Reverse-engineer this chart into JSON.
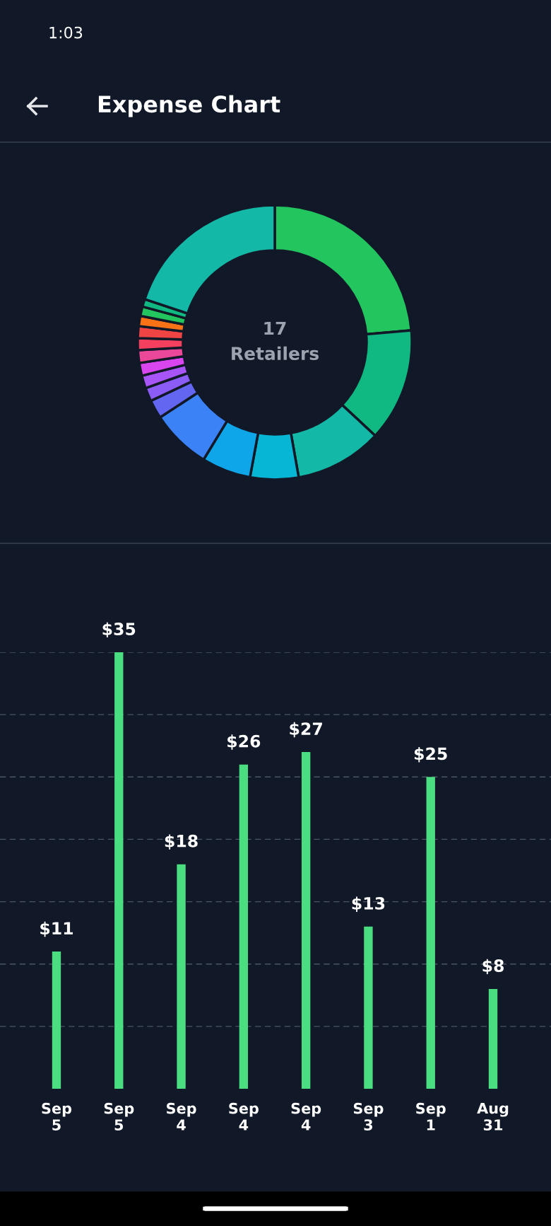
{
  "chart_data": [
    {
      "type": "donut",
      "title": "Expense Chart",
      "annotations": [
        "1:03",
        "17\nRetailers"
      ],
      "categories": [
        null,
        null,
        null,
        null,
        null,
        null,
        null,
        null,
        null,
        null,
        null,
        null,
        null,
        null,
        null,
        null,
        null
      ],
      "values": [
        23.6,
        13.3,
        10.3,
        5.7,
        5.8,
        7.1,
        2.2,
        1.6,
        1.5,
        1.5,
        1.5,
        1.4,
        1.4,
        1.2,
        1.1,
        0.9,
        19.9
      ],
      "colors": [
        "#22c55e",
        "#10b981",
        "#14b8a6",
        "#06b6d4",
        "#0ea5e9",
        "#3b82f6",
        "#6366f1",
        "#8b5cf6",
        "#a855f7",
        "#d946ef",
        "#ec4899",
        "#f43f5e",
        "#ef4444",
        "#f97316",
        "#22c55e",
        "#10b981",
        "#14b8a6"
      ]
    },
    {
      "type": "bar",
      "categories": [
        "Sep\n5",
        "Sep\n5",
        "Sep\n4",
        "Sep\n4",
        "Sep\n4",
        "Sep\n3",
        "Sep\n1",
        "Aug\n31"
      ],
      "values": [
        11,
        35,
        18,
        26,
        27,
        13,
        25,
        8
      ],
      "value_labels": [
        "$11",
        "$35",
        "$18",
        "$26",
        "$27",
        "$13",
        "$25",
        "$8"
      ],
      "color": "#4ade80",
      "yticks": [
        {
          "value": 5,
          "label": null
        },
        {
          "value": 10,
          "label": null
        },
        {
          "value": 15,
          "label": null
        },
        {
          "value": 20,
          "label": null
        },
        {
          "value": 25,
          "label": null
        },
        {
          "value": 30,
          "label": null
        },
        {
          "value": 35,
          "label": null
        }
      ],
      "grid": "y",
      "tick_labels": "x"
    }
  ]
}
